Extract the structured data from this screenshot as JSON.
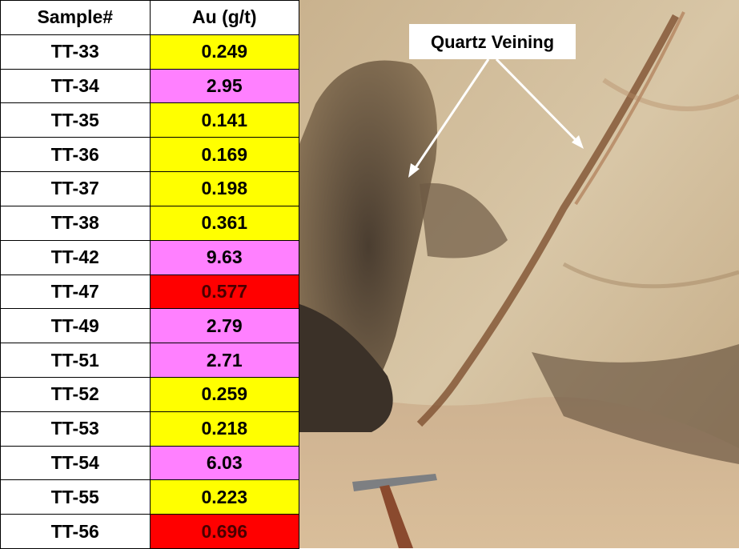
{
  "table": {
    "header": [
      "Sample#",
      "Au (g/t)"
    ],
    "rows": [
      {
        "sample": "TT-33",
        "au": "0.249",
        "color": "#ffff00"
      },
      {
        "sample": "TT-34",
        "au": "2.95",
        "color": "#ff80ff"
      },
      {
        "sample": "TT-35",
        "au": "0.141",
        "color": "#ffff00"
      },
      {
        "sample": "TT-36",
        "au": "0.169",
        "color": "#ffff00"
      },
      {
        "sample": "TT-37",
        "au": "0.198",
        "color": "#ffff00"
      },
      {
        "sample": "TT-38",
        "au": "0.361",
        "color": "#ffff00"
      },
      {
        "sample": "TT-42",
        "au": "9.63",
        "color": "#ff80ff"
      },
      {
        "sample": "TT-47",
        "au": "0.577",
        "color": "#ff0000"
      },
      {
        "sample": "TT-49",
        "au": "2.79",
        "color": "#ff80ff"
      },
      {
        "sample": "TT-51",
        "au": "2.71",
        "color": "#ff80ff"
      },
      {
        "sample": "TT-52",
        "au": "0.259",
        "color": "#ffff00"
      },
      {
        "sample": "TT-53",
        "au": "0.218",
        "color": "#ffff00"
      },
      {
        "sample": "TT-54",
        "au": "6.03",
        "color": "#ff80ff"
      },
      {
        "sample": "TT-55",
        "au": "0.223",
        "color": "#ffff00"
      },
      {
        "sample": "TT-56",
        "au": "0.696",
        "color": "#ff0000"
      }
    ]
  },
  "photo": {
    "label": "Quartz Veining"
  }
}
